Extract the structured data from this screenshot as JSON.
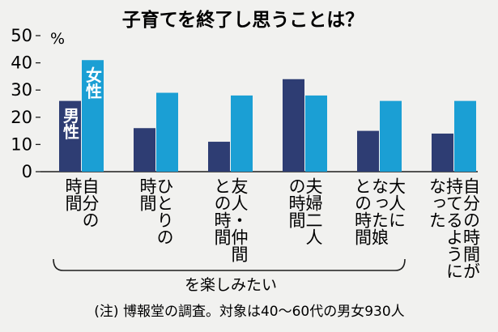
{
  "chart_data": {
    "type": "bar",
    "title": "子育てを終了し思うことは？",
    "ylabel": "%",
    "ylim": [
      0,
      50
    ],
    "yticks": [
      0,
      10,
      20,
      30,
      40,
      50
    ],
    "grid": false,
    "legend": "inside-first-group",
    "categories": [
      [
        "時間",
        "自分の"
      ],
      [
        "時間",
        "ひとりの"
      ],
      [
        "との時間",
        "友人・仲間"
      ],
      [
        "の時間",
        "夫婦二人"
      ],
      [
        "との時間",
        "なった娘",
        "大人に"
      ],
      [
        "なった",
        "持てるように",
        "自分の時間が"
      ]
    ],
    "series": [
      {
        "name": "男性",
        "color": "#2e3d73",
        "values": [
          26,
          16,
          11,
          34,
          15,
          14
        ]
      },
      {
        "name": "女性",
        "color": "#1b9fd4",
        "values": [
          41,
          29,
          28,
          28,
          26,
          26
        ]
      }
    ],
    "bracket_label": "を楽しみたい",
    "note": "(注) 博報堂の調査。対象は40〜60代の男女930人"
  }
}
